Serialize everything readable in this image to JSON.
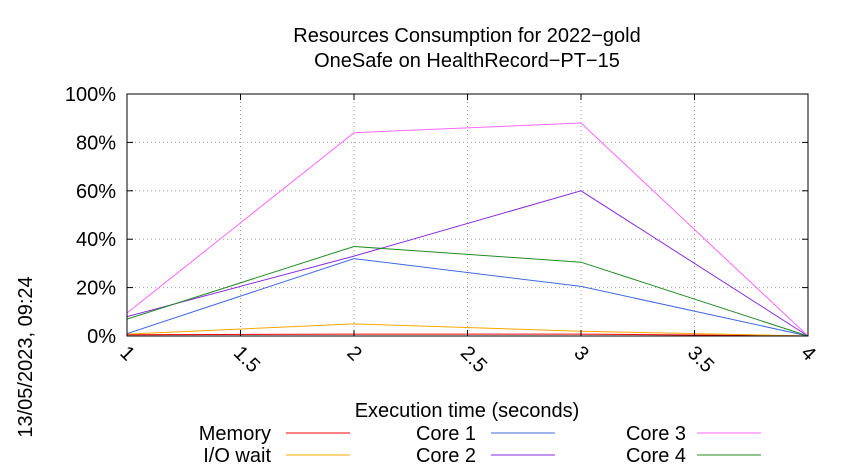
{
  "side_label": "13/05/2023, 09:24",
  "chart_data": {
    "type": "line",
    "title": "Resources Consumption for 2022−gold",
    "subtitle": "OneSafe on HealthRecord−PT−15",
    "xlabel": "Execution time (seconds)",
    "ylabel": "",
    "xlim": [
      1,
      4
    ],
    "ylim": [
      0,
      100
    ],
    "xticks": [
      "1",
      "1.5",
      "2",
      "2.5",
      "3",
      "3.5",
      "4"
    ],
    "yticks": [
      "0%",
      "20%",
      "40%",
      "60%",
      "80%",
      "100%"
    ],
    "grid": true,
    "legend_position": "bottom",
    "series": [
      {
        "name": "Memory",
        "color": "#ff0000",
        "x": [
          1,
          2,
          3,
          4
        ],
        "y": [
          0.5,
          0.8,
          0.8,
          0
        ]
      },
      {
        "name": "I/O wait",
        "color": "#ffa500",
        "x": [
          1,
          2,
          3,
          4
        ],
        "y": [
          0.8,
          5,
          2,
          0
        ]
      },
      {
        "name": "Core 1",
        "color": "#4169e1",
        "x": [
          1,
          2,
          3,
          4
        ],
        "y": [
          1,
          32,
          20.5,
          0
        ]
      },
      {
        "name": "Core 2",
        "color": "#8a2be2",
        "x": [
          1,
          2,
          3,
          4
        ],
        "y": [
          8,
          33,
          60,
          0
        ]
      },
      {
        "name": "Core 3",
        "color": "#ff66ff",
        "x": [
          1,
          2,
          3,
          4
        ],
        "y": [
          9.5,
          84,
          88,
          0
        ]
      },
      {
        "name": "Core 4",
        "color": "#228b22",
        "x": [
          1,
          2,
          3,
          4
        ],
        "y": [
          7,
          37,
          30.5,
          0
        ]
      }
    ]
  }
}
